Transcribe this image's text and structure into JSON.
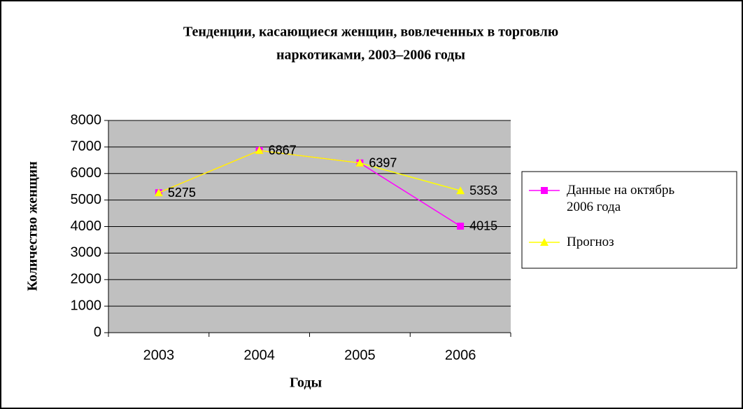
{
  "chart_data": {
    "type": "line",
    "title": [
      "Тенденции, касающиеся женщин, вовлеченных в торговлю",
      "наркотиками, 2003–2006 годы"
    ],
    "x_label": "Годы",
    "y_label": "Количество женщин",
    "categories": [
      "2003",
      "2004",
      "2005",
      "2006"
    ],
    "series": [
      {
        "name": "Данные на октябрь 2006 года",
        "color": "#ff00ff",
        "marker": "square",
        "values": [
          5275,
          6867,
          6397,
          4015
        ]
      },
      {
        "name": "Прогноз",
        "color": "#ffff00",
        "marker": "triangle",
        "values": [
          5275,
          6867,
          6397,
          5353
        ]
      }
    ],
    "ylim": [
      0,
      8000
    ],
    "yticks": [
      0,
      1000,
      2000,
      3000,
      4000,
      5000,
      6000,
      7000,
      8000
    ],
    "grid": true,
    "legend": "right"
  }
}
